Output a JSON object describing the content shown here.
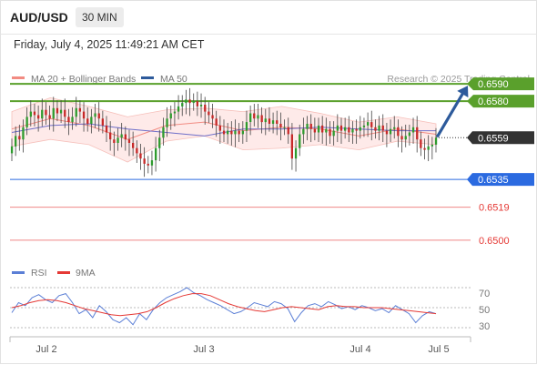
{
  "header": {
    "symbol": "AUD/USD",
    "interval": "30 MIN",
    "timestamp": "Friday, July 4, 2025 11:49:21 AM CET"
  },
  "legend": {
    "ma20": "MA 20 + Bollinger Bands",
    "ma50": "MA 50",
    "credit": "Research © 2025 Trading Central",
    "colors": {
      "ma20": "#f28b82",
      "ma50": "#2d5a9b"
    }
  },
  "rsi_legend": {
    "rsi": "RSI",
    "ma9": "9MA",
    "colors": {
      "rsi": "#5b7fd6",
      "ma9": "#e53935"
    }
  },
  "chart_data": [
    {
      "type": "line",
      "title": "",
      "ylim": [
        0.649,
        0.66
      ],
      "x_labels": [
        "Jul 2",
        "Jul 3",
        "Jul 4",
        "Jul 5"
      ],
      "grid": false,
      "series": [
        {
          "name": "AUD/USD",
          "kind": "candlestick-close",
          "values": [
            0.6554,
            0.656,
            0.6558,
            0.6565,
            0.6571,
            0.6574,
            0.6572,
            0.657,
            0.6575,
            0.6572,
            0.657,
            0.6576,
            0.6573,
            0.6575,
            0.6571,
            0.6568,
            0.6571,
            0.6576,
            0.6574,
            0.657,
            0.6567,
            0.6571,
            0.6573,
            0.657,
            0.6566,
            0.6562,
            0.6558,
            0.6556,
            0.6559,
            0.6561,
            0.6558,
            0.6556,
            0.6553,
            0.655,
            0.6547,
            0.6544,
            0.6543,
            0.6546,
            0.6553,
            0.6559,
            0.6565,
            0.657,
            0.6573,
            0.6574,
            0.6577,
            0.6579,
            0.6581,
            0.6579,
            0.658,
            0.6577,
            0.6578,
            0.6574,
            0.6572,
            0.657,
            0.6566,
            0.6563,
            0.6561,
            0.6563,
            0.6561,
            0.6563,
            0.6561,
            0.6563,
            0.6568,
            0.6573,
            0.657,
            0.6572,
            0.6568,
            0.657,
            0.6567,
            0.6569,
            0.6567,
            0.6565,
            0.6565,
            0.6561,
            0.6547,
            0.6553,
            0.6561,
            0.6564,
            0.6567,
            0.6564,
            0.6562,
            0.6566,
            0.6562,
            0.6564,
            0.656,
            0.6563,
            0.6566,
            0.6563,
            0.6565,
            0.6562,
            0.6564,
            0.6563,
            0.6565,
            0.6566,
            0.6568,
            0.6565,
            0.6563,
            0.6566,
            0.6563,
            0.6561,
            0.6564,
            0.6565,
            0.656,
            0.6558,
            0.656,
            0.6562,
            0.6565,
            0.6558,
            0.6553,
            0.6552,
            0.6554,
            0.6555,
            0.6559
          ]
        },
        {
          "name": "MA 20",
          "values": [
            0.6564,
            0.657,
            0.6566,
            0.6558,
            0.6566,
            0.6568,
            0.6563,
            0.6565,
            0.6564,
            0.656,
            0.6564,
            0.6561
          ]
        },
        {
          "name": "MA 50",
          "values": [
            0.6562,
            0.6566,
            0.6567,
            0.6564,
            0.6562,
            0.656,
            0.6564,
            0.6564,
            0.6565,
            0.6564,
            0.6563,
            0.6563
          ]
        }
      ],
      "levels": [
        {
          "value": 0.659,
          "label": "0.6590",
          "color": "#5aa02c",
          "style": "resistance"
        },
        {
          "value": 0.658,
          "label": "0.6580",
          "color": "#5aa02c",
          "style": "resistance"
        },
        {
          "value": 0.6559,
          "label": "0.6559",
          "color": "#333333",
          "style": "last-price"
        },
        {
          "value": 0.6535,
          "label": "0.6535",
          "color": "#2b6ae0",
          "style": "pivot"
        },
        {
          "value": 0.6519,
          "label": "0.6519",
          "color": "#e53935",
          "style": "support"
        },
        {
          "value": 0.65,
          "label": "0.6500",
          "color": "#e53935",
          "style": "support"
        }
      ],
      "projection": {
        "from": 0.6559,
        "to": 0.659,
        "color": "#2d5a9b"
      }
    },
    {
      "type": "line",
      "title": "",
      "ylim": [
        20,
        80
      ],
      "yticks": [
        30,
        50,
        70
      ],
      "series": [
        {
          "name": "RSI",
          "values": [
            45,
            55,
            52,
            60,
            63,
            58,
            55,
            62,
            64,
            55,
            44,
            48,
            40,
            52,
            46,
            38,
            35,
            40,
            33,
            44,
            38,
            48,
            55,
            60,
            63,
            66,
            70,
            65,
            62,
            58,
            55,
            52,
            48,
            44,
            46,
            50,
            55,
            53,
            51,
            56,
            54,
            49,
            36,
            45,
            52,
            54,
            51,
            56,
            53,
            49,
            51,
            48,
            52,
            50,
            47,
            49,
            45,
            52,
            48,
            44,
            35,
            42,
            46,
            44
          ]
        },
        {
          "name": "9MA",
          "values": [
            50,
            52,
            55,
            57,
            58,
            57,
            55,
            52,
            49,
            47,
            45,
            43,
            42,
            43,
            44,
            46,
            50,
            55,
            59,
            62,
            64,
            64,
            62,
            58,
            54,
            51,
            49,
            47,
            46,
            48,
            50,
            51,
            50,
            49,
            48,
            51,
            52,
            51,
            51,
            50,
            50,
            50,
            49,
            48,
            47,
            46,
            45,
            44
          ]
        }
      ]
    }
  ],
  "x_axis": {
    "labels": [
      "Jul 2",
      "Jul 3",
      "Jul 4",
      "Jul 5"
    ]
  },
  "rsi_axis": {
    "labels": [
      "70",
      "50",
      "30"
    ]
  }
}
